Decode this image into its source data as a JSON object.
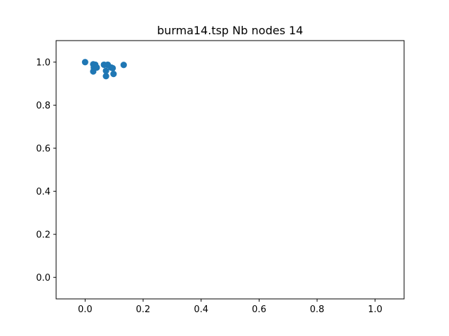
{
  "chart_data": {
    "type": "scatter",
    "title": "burma14.tsp Nb nodes 14",
    "xlabel": "",
    "ylabel": "",
    "xlim": [
      -0.1,
      1.1
    ],
    "ylim": [
      -0.1,
      1.1
    ],
    "xticks": [
      0.0,
      0.2,
      0.4,
      0.6,
      0.8,
      1.0
    ],
    "yticks": [
      0.0,
      0.2,
      0.4,
      0.6,
      0.8,
      1.0
    ],
    "xtick_labels": [
      "0.0",
      "0.2",
      "0.4",
      "0.6",
      "0.8",
      "1.0"
    ],
    "ytick_labels": [
      "0.0",
      "0.2",
      "0.4",
      "0.6",
      "0.8",
      "1.0"
    ],
    "grid": false,
    "marker_color": "#1f77b4",
    "series": [
      {
        "x": [
          0.0,
          0.028,
          0.035,
          0.03,
          0.04,
          0.028,
          0.065,
          0.078,
          0.072,
          0.09,
          0.095,
          0.098,
          0.072,
          0.133
        ],
        "y": [
          1.0,
          0.99,
          0.988,
          0.975,
          0.975,
          0.957,
          0.988,
          0.988,
          0.96,
          0.975,
          0.972,
          0.945,
          0.935,
          0.987
        ]
      }
    ]
  }
}
